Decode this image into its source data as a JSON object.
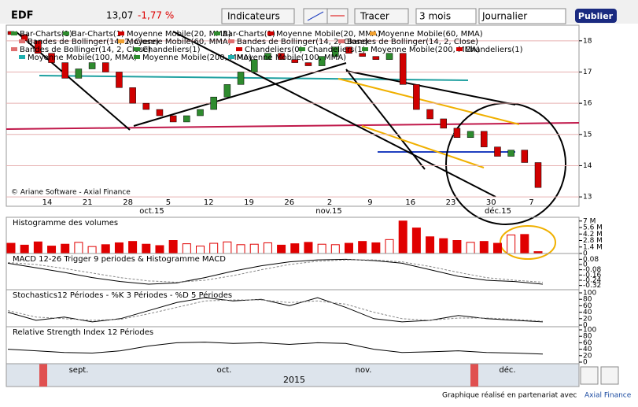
{
  "toolbar": {
    "symbol": "EDF",
    "price": "13,07",
    "change": "-1,77 %",
    "indicators": "Indicateurs",
    "draw": "Tracer",
    "period": "3 mois",
    "interval": "Journalier",
    "publish": "Publier"
  },
  "copyright": "© Ariane Software - Axial Finance",
  "legend": [
    {
      "name": "Bar-Charts(1)",
      "color": "#2e8b2e"
    },
    {
      "name": "Bar-Charts(1)",
      "color": "#2e8b2e"
    },
    {
      "name": "Moyenne Mobile(20, MMA)",
      "color": "#d00000"
    },
    {
      "name": "Bar-Charts(1)",
      "color": "#2e8b2e"
    },
    {
      "name": "Moyenne Mobile(20, MMA)",
      "color": "#d00000"
    },
    {
      "name": "Moyenne Mobile(60, MMA)",
      "color": "#f0a030"
    },
    {
      "name": "Bandes de Bollinger(14, 2, Close)",
      "color": "#e07070"
    },
    {
      "name": "Moyenne Mobile(60, MMA)",
      "color": "#f0a030"
    },
    {
      "name": "Bandes de Bollinger(14, 2, Close)",
      "color": "#e07070"
    },
    {
      "name": "Bandes de Bollinger(14, 2, Close)",
      "color": "#e07070"
    },
    {
      "name": "Bandes de Bollinger(14, 2, Close)",
      "color": "#e07070"
    },
    {
      "name": "Chandeliers(1)",
      "color": "#2e8b2e"
    },
    {
      "name": "Chandeliers(0)",
      "color": "#d00000"
    },
    {
      "name": "Chandeliers(1)",
      "color": "#2e8b2e"
    },
    {
      "name": "Moyenne Mobile(200, MMA)",
      "color": "#2e8b2e"
    },
    {
      "name": "Chandeliers(1)",
      "color": "#d00000"
    },
    {
      "name": "Moyenne Mobile(100, MMA)",
      "color": "#20b0b0"
    },
    {
      "name": "Moyenne Mobile(200, MMA)",
      "color": "#2e8b2e"
    },
    {
      "name": "Moyenne Mobile(100, MMA)",
      "color": "#20b0b0"
    }
  ],
  "chart_data": {
    "type": "candlestick",
    "open": [
      18.3,
      18.2,
      18.0,
      17.6,
      17.3,
      16.8,
      17.1,
      17.3,
      17.0,
      16.5,
      16.0,
      15.8,
      15.6,
      15.4,
      15.6,
      15.8,
      16.2,
      16.6,
      17.0,
      17.4,
      17.6,
      17.4,
      17.3,
      17.2,
      17.5,
      17.8,
      17.6,
      17.5,
      17.4,
      17.6,
      16.6,
      15.8,
      15.5,
      15.2,
      14.9,
      15.1,
      14.6,
      14.3,
      14.5,
      14.1
    ],
    "close": [
      18.2,
      18.0,
      17.6,
      17.3,
      16.8,
      17.1,
      17.3,
      17.0,
      16.5,
      16.0,
      15.8,
      15.6,
      15.4,
      15.6,
      15.8,
      16.2,
      16.6,
      17.0,
      17.4,
      17.6,
      17.4,
      17.3,
      17.2,
      17.5,
      17.8,
      17.6,
      17.5,
      17.4,
      17.6,
      16.6,
      15.8,
      15.5,
      15.2,
      14.9,
      15.1,
      14.6,
      14.3,
      14.5,
      14.1,
      13.3
    ],
    "up_color": "#2e8b2e",
    "down_color": "#d00000",
    "ylim": [
      12.7,
      18.5
    ],
    "yticks": [
      13,
      14,
      15,
      16,
      17,
      18
    ],
    "x_labels": [
      "14",
      "21",
      "28",
      "5",
      "12",
      "19",
      "26",
      "2",
      "9",
      "16",
      "23",
      "30",
      "7"
    ],
    "months": [
      "oct.15",
      "nov.15",
      "déc.15"
    ],
    "volume": {
      "title": "Histogramme des volumes",
      "values": [
        2.2,
        1.8,
        2.5,
        1.6,
        2.0,
        2.4,
        1.5,
        1.9,
        2.3,
        2.6,
        2.0,
        1.7,
        2.8,
        2.1,
        1.6,
        2.2,
        2.5,
        1.9,
        2.0,
        2.3,
        1.8,
        2.1,
        2.4,
        2.0,
        1.9,
        2.2,
        2.6,
        2.3,
        3.0,
        7.0,
        5.5,
        3.6,
        3.2,
        2.8,
        2.4,
        2.6,
        2.2,
        4.0,
        4.1,
        0.4
      ],
      "color": "#e00000",
      "ylim": [
        0,
        7.3
      ],
      "yticks": [
        {
          "value": 7,
          "label": "7 M"
        },
        {
          "value": 5.6,
          "label": "5.6 M"
        },
        {
          "value": 4.2,
          "label": "4.2 M"
        },
        {
          "value": 2.8,
          "label": "2.8 M"
        },
        {
          "value": 1.4,
          "label": "1.4 M"
        },
        0
      ]
    },
    "macd": {
      "title": "MACD 12-26   Trigger 9 periodes & Histogramme MACD",
      "ylim": [
        -0.36,
        0.12
      ],
      "yticks": [
        0.08,
        0,
        -0.08,
        -0.16,
        -0.24,
        -0.32
      ],
      "series": [
        {
          "name": "MACD",
          "color": "#000000",
          "values": [
            0.02,
            -0.05,
            -0.12,
            -0.2,
            -0.26,
            -0.3,
            -0.28,
            -0.2,
            -0.1,
            -0.02,
            0.04,
            0.07,
            0.08,
            0.06,
            0.02,
            -0.08,
            -0.18,
            -0.24,
            -0.26,
            -0.3
          ]
        },
        {
          "name": "Trigger",
          "color": "#888888",
          "values": [
            0.03,
            0,
            -0.06,
            -0.13,
            -0.2,
            -0.25,
            -0.27,
            -0.24,
            -0.17,
            -0.08,
            0,
            0.05,
            0.07,
            0.07,
            0.04,
            -0.03,
            -0.12,
            -0.2,
            -0.24,
            -0.27
          ]
        }
      ]
    },
    "stoch": {
      "title": "Stochastics12 Périodes  -  %K 3 Périodes  -  %D 5 Périodes",
      "ylim": [
        0,
        100
      ],
      "yticks": [
        100,
        80,
        60,
        40,
        20,
        0
      ],
      "series": [
        {
          "name": "%K",
          "color": "#000000",
          "values": [
            40,
            15,
            25,
            10,
            20,
            45,
            70,
            85,
            75,
            80,
            60,
            85,
            55,
            20,
            10,
            15,
            30,
            20,
            15,
            10
          ]
        },
        {
          "name": "%D",
          "color": "#888888",
          "values": [
            45,
            25,
            20,
            15,
            18,
            35,
            55,
            75,
            78,
            78,
            70,
            75,
            65,
            40,
            20,
            15,
            22,
            22,
            18,
            12
          ]
        }
      ]
    },
    "rsi": {
      "title": "Relative Strength Index 12 Périodes",
      "ylim": [
        0,
        100
      ],
      "yticks": [
        100,
        80,
        60,
        40,
        20,
        0
      ],
      "series": [
        {
          "name": "RSI",
          "color": "#000000",
          "values": [
            40,
            35,
            30,
            28,
            35,
            50,
            60,
            62,
            58,
            60,
            55,
            60,
            58,
            40,
            30,
            32,
            35,
            30,
            28,
            25
          ]
        }
      ]
    }
  },
  "navigator": {
    "months": [
      "sept.",
      "oct.",
      "nov.",
      "déc."
    ],
    "year": "2015"
  },
  "footer": {
    "text": "Graphique réalisé en partenariat avec",
    "link": "Axial Finance"
  }
}
